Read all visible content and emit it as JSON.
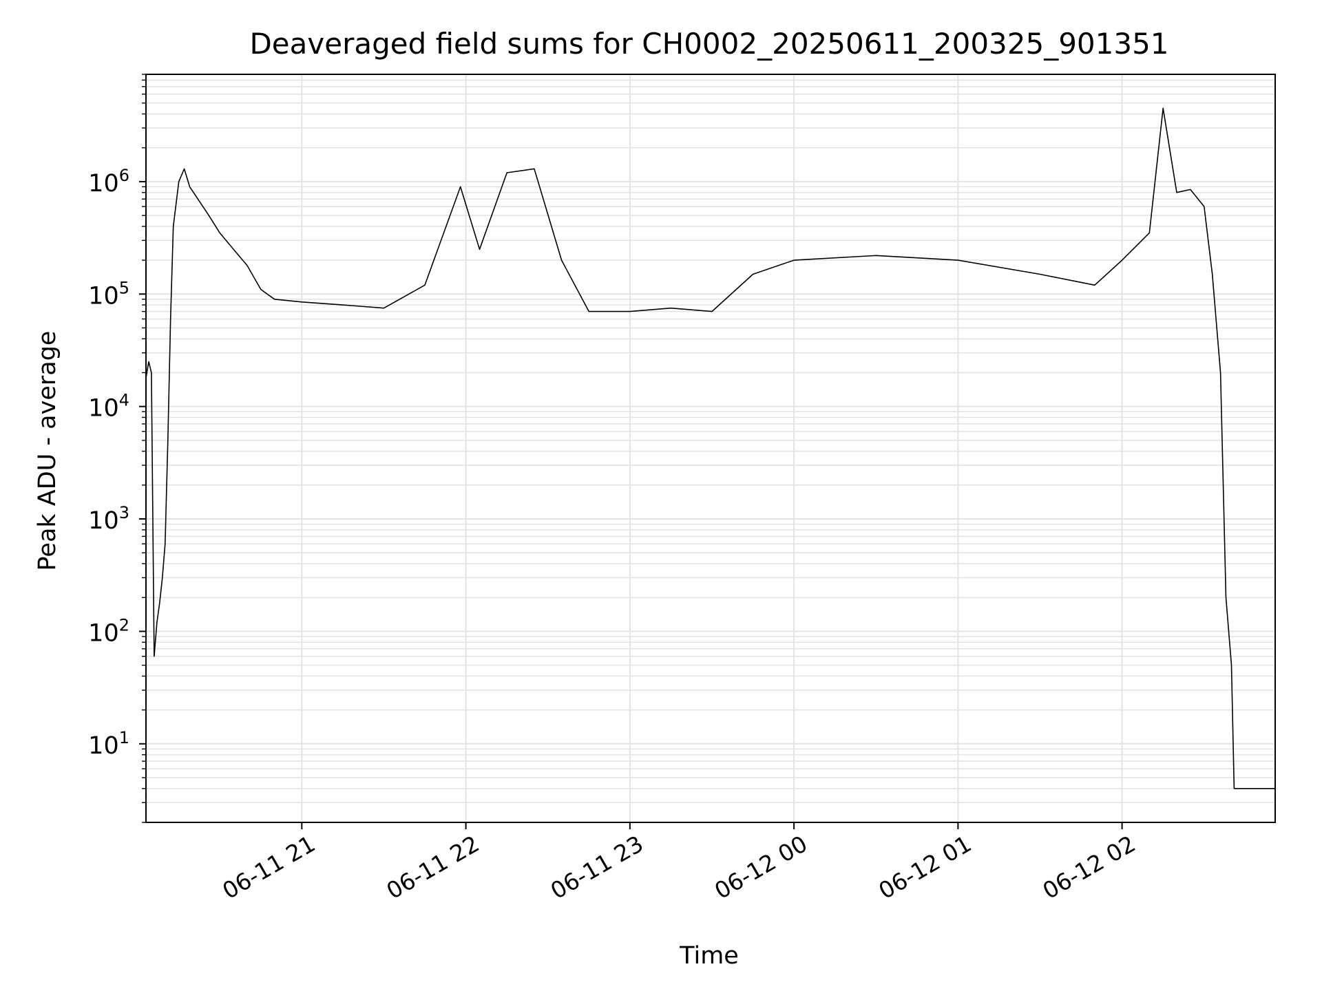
{
  "chart_data": {
    "type": "line",
    "title": "Deaveraged field sums for CH0002_20250611_200325_901351",
    "xlabel": "Time",
    "ylabel": "Peak ADU - average",
    "yscale": "log",
    "grid": true,
    "x_range": [
      "2025-06-11 20:03",
      "2025-06-12 02:56"
    ],
    "ylim": [
      2,
      9000000
    ],
    "x_ticks": [
      {
        "value": "2025-06-11 21:00",
        "label": "06-11 21"
      },
      {
        "value": "2025-06-11 22:00",
        "label": "06-11 22"
      },
      {
        "value": "2025-06-11 23:00",
        "label": "06-11 23"
      },
      {
        "value": "2025-06-12 00:00",
        "label": "06-12 00"
      },
      {
        "value": "2025-06-12 01:00",
        "label": "06-12 01"
      },
      {
        "value": "2025-06-12 02:00",
        "label": "06-12 02"
      }
    ],
    "y_ticks": [
      {
        "value": 10,
        "base": "10",
        "exp": "1"
      },
      {
        "value": 100,
        "base": "10",
        "exp": "2"
      },
      {
        "value": 1000,
        "base": "10",
        "exp": "3"
      },
      {
        "value": 10000,
        "base": "10",
        "exp": "4"
      },
      {
        "value": 100000,
        "base": "10",
        "exp": "5"
      },
      {
        "value": 1000000,
        "base": "10",
        "exp": "6"
      }
    ],
    "series": [
      {
        "color": "#000000",
        "points": [
          [
            "2025-06-11 20:03",
            18000
          ],
          [
            "2025-06-11 20:04",
            25000
          ],
          [
            "2025-06-11 20:05",
            20000
          ],
          [
            "2025-06-11 20:06",
            60
          ],
          [
            "2025-06-11 20:07",
            120
          ],
          [
            "2025-06-11 20:08",
            180
          ],
          [
            "2025-06-11 20:09",
            300
          ],
          [
            "2025-06-11 20:10",
            600
          ],
          [
            "2025-06-11 20:11",
            5000
          ],
          [
            "2025-06-11 20:12",
            60000
          ],
          [
            "2025-06-11 20:13",
            400000
          ],
          [
            "2025-06-11 20:15",
            1000000
          ],
          [
            "2025-06-11 20:17",
            1300000
          ],
          [
            "2025-06-11 20:19",
            900000
          ],
          [
            "2025-06-11 20:22",
            700000
          ],
          [
            "2025-06-11 20:26",
            500000
          ],
          [
            "2025-06-11 20:30",
            350000
          ],
          [
            "2025-06-11 20:35",
            250000
          ],
          [
            "2025-06-11 20:40",
            180000
          ],
          [
            "2025-06-11 20:45",
            110000
          ],
          [
            "2025-06-11 20:50",
            90000
          ],
          [
            "2025-06-11 21:00",
            85000
          ],
          [
            "2025-06-11 21:15",
            80000
          ],
          [
            "2025-06-11 21:30",
            75000
          ],
          [
            "2025-06-11 21:45",
            120000
          ],
          [
            "2025-06-11 21:58",
            900000
          ],
          [
            "2025-06-11 22:05",
            250000
          ],
          [
            "2025-06-11 22:15",
            1200000
          ],
          [
            "2025-06-11 22:25",
            1300000
          ],
          [
            "2025-06-11 22:35",
            200000
          ],
          [
            "2025-06-11 22:45",
            70000
          ],
          [
            "2025-06-11 23:00",
            70000
          ],
          [
            "2025-06-11 23:15",
            75000
          ],
          [
            "2025-06-11 23:30",
            70000
          ],
          [
            "2025-06-11 23:45",
            150000
          ],
          [
            "2025-06-12 00:00",
            200000
          ],
          [
            "2025-06-12 00:30",
            220000
          ],
          [
            "2025-06-12 01:00",
            200000
          ],
          [
            "2025-06-12 01:30",
            150000
          ],
          [
            "2025-06-12 01:50",
            120000
          ],
          [
            "2025-06-12 02:00",
            200000
          ],
          [
            "2025-06-12 02:10",
            350000
          ],
          [
            "2025-06-12 02:15",
            4500000
          ],
          [
            "2025-06-12 02:20",
            800000
          ],
          [
            "2025-06-12 02:25",
            850000
          ],
          [
            "2025-06-12 02:30",
            600000
          ],
          [
            "2025-06-12 02:33",
            150000
          ],
          [
            "2025-06-12 02:36",
            20000
          ],
          [
            "2025-06-12 02:38",
            200
          ],
          [
            "2025-06-12 02:40",
            50
          ],
          [
            "2025-06-12 02:41",
            4
          ],
          [
            "2025-06-12 02:56",
            4
          ]
        ]
      }
    ]
  }
}
